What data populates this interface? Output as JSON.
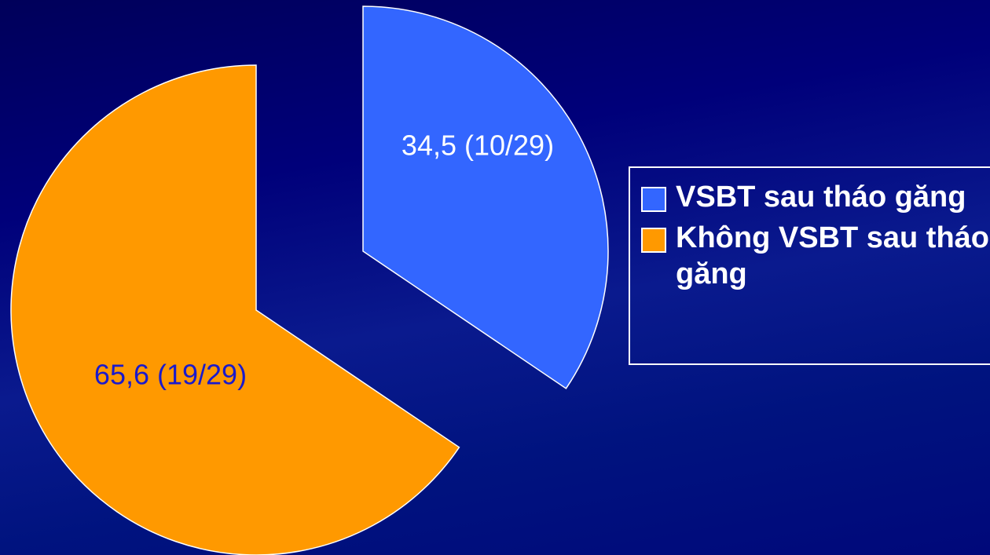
{
  "chart_data": {
    "type": "pie",
    "categories": [
      "VSBT sau tháo găng",
      "Không VSBT sau tháo găng"
    ],
    "values": [
      34.5,
      65.6
    ],
    "value_labels": [
      "34,5 (10/29)",
      "65,6 (19/29)"
    ],
    "colors": [
      "#3366ff",
      "#ff9900"
    ],
    "legend": "right"
  }
}
